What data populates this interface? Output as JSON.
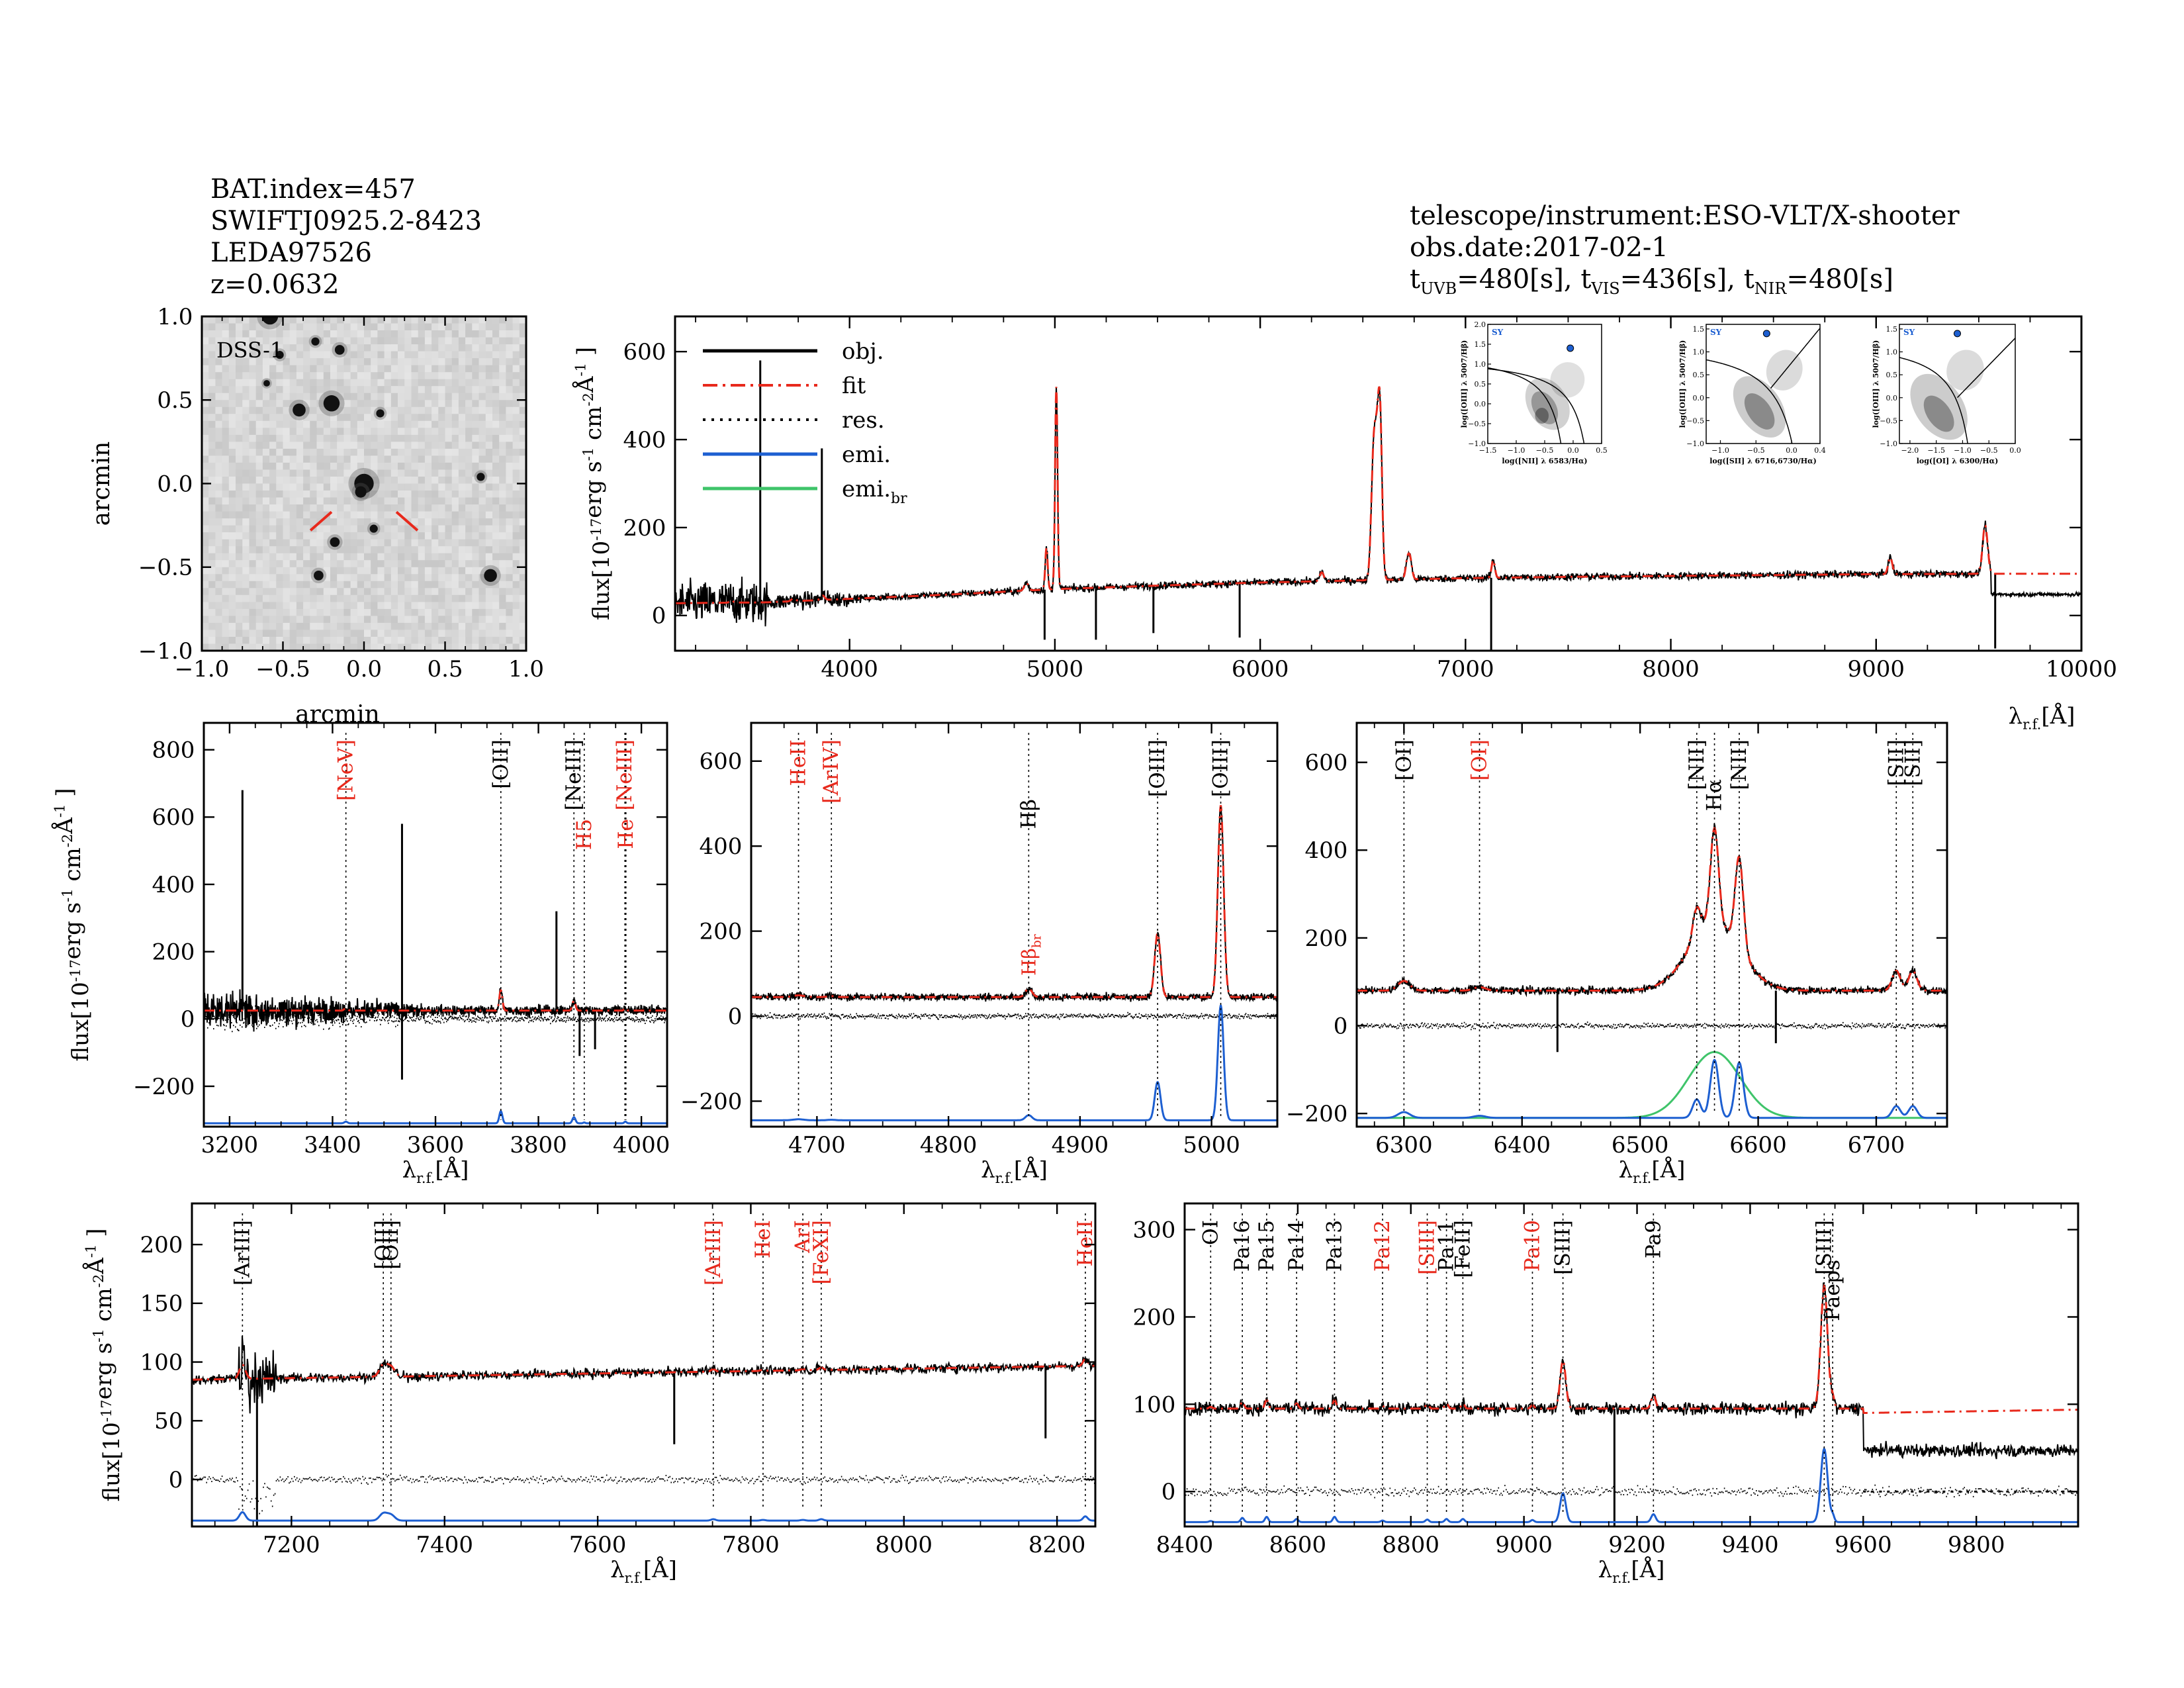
{
  "header_left": [
    "BAT.index=457",
    "SWIFTJ0925.2-8423",
    "LEDA97526",
    "z=0.0632"
  ],
  "header_right": {
    "line1": "telescope/instrument:ESO-VLT/X-shooter",
    "line2": "obs.date:2017-02-1",
    "line3": {
      "t": "t",
      "uvb_sub": "UVB",
      "uvb_val": "=480[s],",
      "vis_sub": "VIS",
      "vis_val": "=436[s],",
      "nir_sub": "NIR",
      "nir_val": "=480[s]"
    }
  },
  "labels": {
    "flux_main": "flux[10",
    "flux_exp": "-17",
    "flux_unit": "erg s",
    "flux_unit_exp": "-1",
    "flux_cm": "cm",
    "flux_cm_exp": "-2",
    "flux_ang": "Å",
    "flux_ang_exp": "-1",
    "flux_close": "]",
    "lambda": "λ",
    "rf": "r.f.",
    "ang_unit": "[Å]",
    "arcmin": "arcmin",
    "dss": "DSS-1"
  },
  "colors": {
    "obj": "#000000",
    "fit": "#e8291c",
    "res": "#000000",
    "emi": "#1d5fd1",
    "emi_br": "#3fc46a",
    "red_label": "#e8291c",
    "dss_bg": "#d2d2d2"
  },
  "legend": [
    {
      "label": "obj.",
      "style": "solid",
      "color": "#000000"
    },
    {
      "label": "fit",
      "style": "dashdot",
      "color": "#e8291c"
    },
    {
      "label": "res.",
      "style": "dotted",
      "color": "#000000"
    },
    {
      "label": "emi.",
      "style": "solid",
      "color": "#1d5fd1"
    },
    {
      "label": "emi.",
      "sub": "br",
      "style": "solid",
      "color": "#3fc46a"
    }
  ],
  "chart_data": [
    {
      "id": "image",
      "type": "image",
      "title": "DSS-1",
      "xlabel": "arcmin",
      "ylabel": "arcmin",
      "xlim": [
        -1.0,
        1.0
      ],
      "ylim": [
        -1.0,
        1.0
      ],
      "xticks": [
        -1.0,
        -0.5,
        0.0,
        0.5,
        1.0
      ],
      "yticks": [
        -1.0,
        -0.5,
        0.0,
        0.5,
        1.0
      ],
      "xtick_labels": [
        "−1.0",
        "−0.5",
        "0.0",
        "0.5",
        "1.0"
      ],
      "ytick_labels": [
        "−1.0",
        "−0.5",
        "0.0",
        "0.5",
        "1.0"
      ],
      "stars": [
        [
          -0.58,
          1.0,
          0.05
        ],
        [
          -0.3,
          0.85,
          0.025
        ],
        [
          -0.15,
          0.8,
          0.03
        ],
        [
          -0.52,
          0.77,
          0.025
        ],
        [
          -0.2,
          0.48,
          0.05
        ],
        [
          -0.4,
          0.44,
          0.04
        ],
        [
          0.1,
          0.42,
          0.025
        ],
        [
          0.0,
          0.0,
          0.06
        ],
        [
          -0.02,
          -0.05,
          0.035
        ],
        [
          0.72,
          0.04,
          0.025
        ],
        [
          0.06,
          -0.27,
          0.025
        ],
        [
          -0.18,
          -0.35,
          0.03
        ],
        [
          -0.28,
          -0.55,
          0.03
        ],
        [
          0.78,
          -0.55,
          0.04
        ],
        [
          -0.6,
          0.6,
          0.02
        ]
      ],
      "markers": [
        [
          [
            -0.33,
            -0.28
          ],
          [
            -0.2,
            -0.17
          ]
        ],
        [
          [
            0.2,
            -0.17
          ],
          [
            0.33,
            -0.28
          ]
        ]
      ]
    },
    {
      "id": "full",
      "type": "line",
      "xlim": [
        3150,
        10000
      ],
      "ylim": [
        -80,
        680
      ],
      "xticks": [
        4000,
        5000,
        6000,
        7000,
        8000,
        9000,
        10000
      ],
      "yticks": [
        0,
        200,
        400,
        600
      ],
      "xtick_labels": [
        "4000",
        "5000",
        "6000",
        "7000",
        "8000",
        "9000",
        "10000"
      ],
      "ytick_labels": [
        "0",
        "200",
        "400",
        "600"
      ],
      "continuum": [
        [
          3150,
          28
        ],
        [
          3600,
          30
        ],
        [
          4000,
          38
        ],
        [
          4500,
          48
        ],
        [
          5000,
          60
        ],
        [
          5500,
          68
        ],
        [
          6000,
          75
        ],
        [
          6500,
          80
        ],
        [
          7000,
          85
        ],
        [
          7500,
          88
        ],
        [
          8000,
          90
        ],
        [
          8500,
          92
        ],
        [
          9000,
          94
        ],
        [
          9600,
          95
        ],
        [
          10000,
          95
        ]
      ],
      "obs_continuum": [
        [
          9560,
          50
        ],
        [
          10000,
          48
        ]
      ],
      "lines": [
        [
          3424,
          6,
          8
        ],
        [
          3727,
          7,
          10
        ],
        [
          3869,
          10,
          10
        ],
        [
          4861,
          18,
          10
        ],
        [
          4959,
          95,
          6
        ],
        [
          5007,
          460,
          6
        ],
        [
          6300,
          20,
          10
        ],
        [
          6548,
          110,
          10
        ],
        [
          6563,
          300,
          14
        ],
        [
          6584,
          320,
          10
        ],
        [
          6717,
          40,
          9
        ],
        [
          6731,
          40,
          9
        ],
        [
          7135,
          40,
          8
        ],
        [
          9069,
          38,
          10
        ],
        [
          9531,
          110,
          12
        ]
      ],
      "spikes": [
        [
          3565,
          580
        ],
        [
          3865,
          380
        ],
        [
          4950,
          -55
        ],
        [
          5200,
          -55
        ],
        [
          5480,
          -40
        ],
        [
          5900,
          -50
        ],
        [
          7125,
          -80
        ],
        [
          9580,
          -75
        ]
      ]
    },
    {
      "id": "p1",
      "type": "line",
      "xlim": [
        3150,
        4050
      ],
      "ylim": [
        -320,
        880
      ],
      "xticks": [
        3200,
        3400,
        3600,
        3800,
        4000
      ],
      "yticks": [
        -200,
        0,
        200,
        400,
        600,
        800
      ],
      "xtick_labels": [
        "3200",
        "3400",
        "3600",
        "3800",
        "4000"
      ],
      "ytick_labels": [
        "−200",
        "0",
        "200",
        "400",
        "600",
        "800"
      ],
      "cont": 25,
      "emi_base": -310,
      "res_base": 0,
      "noise": 55,
      "lines": [
        [
          3426,
          8,
          3,
          "[NeV]",
          "red",
          1
        ],
        [
          3727,
          60,
          3,
          "[OII]",
          "black",
          1
        ],
        [
          3869,
          30,
          3,
          "[NeIII]",
          "black",
          1
        ],
        [
          3889,
          4,
          2,
          "H5",
          "red",
          2
        ],
        [
          3968,
          5,
          2,
          "[NeIII]",
          "red",
          1
        ],
        [
          3970,
          4,
          2,
          "He",
          "red",
          2
        ]
      ],
      "spikes": [
        [
          3225,
          680
        ],
        [
          3535,
          580
        ],
        [
          3835,
          320
        ],
        [
          3535,
          -180
        ],
        [
          3880,
          -110
        ],
        [
          3910,
          -90
        ]
      ]
    },
    {
      "id": "p2",
      "type": "line",
      "xlim": [
        4650,
        5050
      ],
      "ylim": [
        -260,
        690
      ],
      "xticks": [
        4700,
        4800,
        4900,
        5000
      ],
      "yticks": [
        -200,
        0,
        200,
        400,
        600
      ],
      "xtick_labels": [
        "4700",
        "4800",
        "4900",
        "5000"
      ],
      "ytick_labels": [
        "−200",
        "0",
        "200",
        "400",
        "600"
      ],
      "cont": 45,
      "emi_base": -245,
      "res_base": 0,
      "noise": 8,
      "lines": [
        [
          4686,
          4,
          4,
          "HeII",
          "red",
          1
        ],
        [
          4711,
          2,
          3,
          "[ArIV]",
          "red",
          1
        ],
        [
          4861,
          20,
          2.5,
          "Hβ",
          "black",
          2
        ],
        [
          4959,
          150,
          2.2,
          "[OIII]",
          "black",
          1
        ],
        [
          5007,
          450,
          2.2,
          "[OIII]",
          "black",
          1
        ]
      ],
      "extra_labels": [
        [
          4861,
          "Hβ",
          "br",
          "red"
        ]
      ],
      "spikes": []
    },
    {
      "id": "p3",
      "type": "line",
      "xlim": [
        6260,
        6760
      ],
      "ylim": [
        -230,
        690
      ],
      "xticks": [
        6300,
        6400,
        6500,
        6600,
        6700
      ],
      "yticks": [
        -200,
        0,
        200,
        400,
        600
      ],
      "xtick_labels": [
        "6300",
        "6400",
        "6500",
        "6600",
        "6700"
      ],
      "ytick_labels": [
        "−200",
        "0",
        "200",
        "400",
        "600"
      ],
      "cont": 80,
      "emi_base": -210,
      "res_base": 0,
      "noise": 8,
      "broad": [
        6563,
        150,
        22
      ],
      "lines": [
        [
          6300,
          22,
          5,
          "[OI]",
          "black",
          1
        ],
        [
          6364,
          8,
          5,
          "[OI]",
          "red",
          1
        ],
        [
          6548,
          70,
          3.5,
          "[NII]",
          "black",
          1
        ],
        [
          6563,
          220,
          3.5,
          "Hα",
          "black",
          2
        ],
        [
          6584,
          210,
          3.5,
          "[NII]",
          "black",
          1
        ],
        [
          6717,
          45,
          3.5,
          "[SII]",
          "black",
          1
        ],
        [
          6731,
          45,
          3.5,
          "[SII]",
          "black",
          1
        ]
      ],
      "spikes": [
        [
          6430,
          -60
        ],
        [
          6615,
          -40
        ]
      ]
    },
    {
      "id": "p4",
      "type": "line",
      "xlim": [
        7070,
        8250
      ],
      "ylim": [
        -40,
        235
      ],
      "xticks": [
        7200,
        7400,
        7600,
        7800,
        8000,
        8200
      ],
      "yticks": [
        0,
        50,
        100,
        150,
        200
      ],
      "xtick_labels": [
        "7200",
        "7400",
        "7600",
        "7800",
        "8000",
        "8200"
      ],
      "ytick_labels": [
        "0",
        "50",
        "100",
        "150",
        "200"
      ],
      "cont": 85,
      "cont_slope": 0.01,
      "emi_base": -35,
      "res_base": 0,
      "noise": 4,
      "lines": [
        [
          7136,
          12,
          4,
          "[ArIII]",
          "black",
          1
        ],
        [
          7320,
          10,
          5,
          "[OII]",
          "black",
          1
        ],
        [
          7330,
          8,
          5,
          "[OII]",
          "black",
          1
        ],
        [
          7751,
          2,
          3,
          "[ArIII]",
          "red",
          1
        ],
        [
          7816,
          1,
          3,
          "HeI",
          "red",
          1
        ],
        [
          7868,
          1,
          3,
          "ArI",
          "red",
          1
        ],
        [
          7892,
          2,
          3,
          "[FeXI]",
          "red",
          1
        ],
        [
          8237,
          6,
          3,
          "HeII",
          "red",
          1
        ]
      ],
      "spikes": [
        [
          7160,
          80
        ],
        [
          7155,
          -55
        ],
        [
          7700,
          30
        ],
        [
          8185,
          35
        ]
      ]
    },
    {
      "id": "p5",
      "type": "line",
      "xlim": [
        8400,
        9980
      ],
      "ylim": [
        -40,
        330
      ],
      "xticks": [
        8400,
        8600,
        8800,
        9000,
        9200,
        9400,
        9600,
        9800
      ],
      "yticks": [
        0,
        100,
        200,
        300
      ],
      "xtick_labels": [
        "8400",
        "8600",
        "8800",
        "9000",
        "9200",
        "9400",
        "9600",
        "9800"
      ],
      "ytick_labels": [
        "0",
        "100",
        "200",
        "300"
      ],
      "cont": 95,
      "emi_base": -35,
      "res_base": 0,
      "noise": 7,
      "cutoff": 9600,
      "obs_after": 47,
      "lines": [
        [
          8446,
          2,
          3,
          "OI",
          "black",
          1
        ],
        [
          8502,
          8,
          3,
          "Pa16",
          "black",
          1
        ],
        [
          8545,
          10,
          3,
          "Pa15",
          "black",
          1
        ],
        [
          8598,
          6,
          3,
          "Pa14",
          "black",
          1
        ],
        [
          8665,
          10,
          3,
          "Pa13",
          "black",
          1
        ],
        [
          8750,
          3,
          3,
          "Pa12",
          "red",
          1
        ],
        [
          8829,
          5,
          3,
          "[SIII]",
          "red",
          1
        ],
        [
          8863,
          6,
          3,
          "Pa11",
          "black",
          1
        ],
        [
          8892,
          6,
          3,
          "[FeII]",
          "black",
          1
        ],
        [
          9015,
          4,
          3,
          "Pa10",
          "red",
          1
        ],
        [
          9069,
          55,
          5,
          "[SIII]",
          "black",
          1
        ],
        [
          9229,
          15,
          4,
          "Pa9",
          "black",
          1
        ],
        [
          9531,
          140,
          6,
          "[SIII]",
          "black",
          1
        ],
        [
          9546,
          12,
          3,
          "Paeps",
          "black",
          2
        ]
      ],
      "spikes": [
        [
          9160,
          -55
        ]
      ]
    },
    {
      "id": "bpt1",
      "type": "scatter",
      "xlabel": "log([NII] λ 6583/Hα)",
      "ylabel": "log([OIII] λ 5007/Hβ)",
      "label": "SY",
      "xlim": [
        -1.5,
        0.5
      ],
      "ylim": [
        -1.0,
        2.0
      ],
      "xticks": [
        -1.5,
        -1.0,
        -0.5,
        0.0,
        0.5
      ],
      "yticks": [
        -1.0,
        -0.5,
        0.0,
        0.5,
        1.0,
        1.5,
        2.0
      ],
      "xtick_labels": [
        "−1.5",
        "−1.0",
        "−0.5",
        "0.0",
        "0.5"
      ],
      "ytick_labels": [
        "−1.0",
        "−0.5",
        "0.0",
        "0.5",
        "1.0",
        "1.5",
        "2.0"
      ],
      "point": [
        -0.05,
        1.4
      ]
    },
    {
      "id": "bpt2",
      "type": "scatter",
      "xlabel": "log([SII] λ 6716,6730/Hα)",
      "ylabel": "log([OIII] λ 5007/Hβ)",
      "label": "SY",
      "xlim": [
        -1.2,
        0.4
      ],
      "ylim": [
        -1.0,
        1.6
      ],
      "xticks": [
        -1.0,
        -0.5,
        0.0,
        0.4
      ],
      "yticks": [
        -1.0,
        -0.5,
        0.0,
        0.5,
        1.0,
        1.5
      ],
      "xtick_labels": [
        "−1.0",
        "−0.5",
        "0.0",
        "0.4"
      ],
      "ytick_labels": [
        "−1.0",
        "−0.5",
        "0.0",
        "0.5",
        "1.0",
        "1.5"
      ],
      "point": [
        -0.35,
        1.4
      ]
    },
    {
      "id": "bpt3",
      "type": "scatter",
      "xlabel": "log([OI] λ 6300/Hα)",
      "ylabel": "log([OIII] λ 5007/Hβ)",
      "label": "SY",
      "xlim": [
        -2.2,
        0.0
      ],
      "ylim": [
        -1.0,
        1.6
      ],
      "xticks": [
        -2.0,
        -1.5,
        -1.0,
        -0.5,
        0.0
      ],
      "yticks": [
        -1.0,
        -0.5,
        0.0,
        0.5,
        1.0,
        1.5
      ],
      "xtick_labels": [
        "−2.0",
        "−1.5",
        "−1.0",
        "−0.5",
        "0.0"
      ],
      "ytick_labels": [
        "−1.0",
        "−0.5",
        "0.0",
        "0.5",
        "1.0",
        "1.5"
      ],
      "point": [
        -1.1,
        1.4
      ]
    }
  ]
}
